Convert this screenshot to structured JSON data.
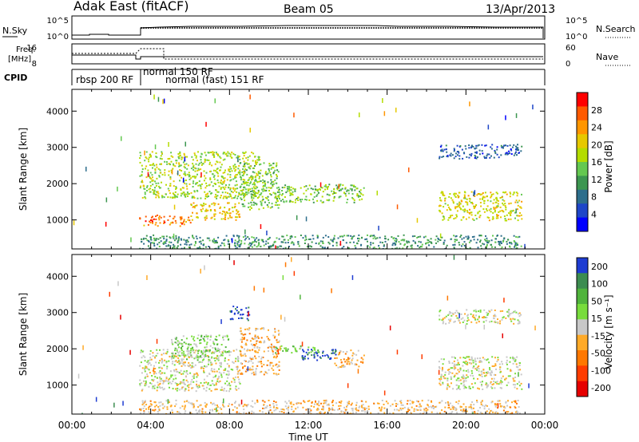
{
  "header": {
    "station": "Adak East (fitACF)",
    "beam": "Beam 05",
    "date": "13/Apr/2013"
  },
  "top_panels": {
    "nsky_label": "N.Sky",
    "nsearch_label": "N.Search",
    "nsky_ticks": [
      "10^5",
      "10^0"
    ],
    "nsearch_ticks": [
      "10^5",
      "10^0"
    ],
    "freq_label_1": "Freq.",
    "freq_label_2": "[MHz]",
    "freq_ticks": [
      "16",
      "8"
    ],
    "nave_label": "Nave",
    "nave_ticks": [
      "60",
      "0"
    ],
    "cpid_label": "CPID",
    "cpid_entries": [
      {
        "text": "rbsp 200 RF",
        "start": 0.0
      },
      {
        "text": "normal 150 RF",
        "start": 3.3
      },
      {
        "text": "normal (fast) 151 RF",
        "start": 3.3
      }
    ]
  },
  "colorbars": {
    "power": {
      "label": "Power [dB]",
      "ticks": [
        "28",
        "24",
        "20",
        "16",
        "12",
        "8",
        "4"
      ],
      "colors": [
        "#ff0000",
        "#ff5a00",
        "#ff9600",
        "#e6c800",
        "#b4dc00",
        "#64c850",
        "#3c9650",
        "#2d6e8c",
        "#1e46c8",
        "#0000ff"
      ]
    },
    "velocity": {
      "label": "Velocity [m s⁻¹]",
      "ticks": [
        "200",
        "100",
        "50",
        "15",
        "-15",
        "-50",
        "-100",
        "-200"
      ],
      "colors": [
        "#1e3cd2",
        "#3c8c50",
        "#50b43c",
        "#78dc3c",
        "#c8c8c8",
        "#ffaa28",
        "#ff7800",
        "#ff3c00",
        "#e60000"
      ]
    }
  },
  "axes": {
    "ylabel": "Slant Range [km]",
    "xlabel": "Time UT",
    "yticks": [
      "1000",
      "2000",
      "3000",
      "4000"
    ],
    "xticks": [
      "00:00",
      "04:00",
      "08:00",
      "12:00",
      "16:00",
      "20:00",
      "00:00"
    ]
  },
  "chart_data": [
    {
      "type": "heatmap",
      "title": "",
      "parameter": "Power",
      "xlabel": "Time UT",
      "ylabel": "Slant Range [km]",
      "xlim_hours": [
        0,
        24
      ],
      "ylim_km": [
        200,
        4600
      ],
      "cbar_label": "Power [dB]",
      "cbar_range": [
        0,
        30
      ],
      "regions": [
        {
          "t0": 3.4,
          "t1": 6.0,
          "r0": 850,
          "r1": 1150,
          "level": 24
        },
        {
          "t0": 6.0,
          "t1": 8.5,
          "r0": 1000,
          "r1": 1500,
          "level": 20
        },
        {
          "t0": 8.5,
          "t1": 10.5,
          "r0": 1300,
          "r1": 2600,
          "level": 14
        },
        {
          "t0": 3.4,
          "t1": 9.5,
          "r0": 1600,
          "r1": 2900,
          "level": 16
        },
        {
          "t0": 10.3,
          "t1": 14.8,
          "r0": 1500,
          "r1": 2000,
          "level": 14
        },
        {
          "t0": 18.6,
          "t1": 22.8,
          "r0": 1000,
          "r1": 1800,
          "level": 18
        },
        {
          "t0": 18.6,
          "t1": 22.8,
          "r0": 2700,
          "r1": 3100,
          "level": 6
        },
        {
          "t0": 3.4,
          "t1": 22.8,
          "r0": 200,
          "r1": 600,
          "level": 10
        }
      ]
    },
    {
      "type": "heatmap",
      "title": "",
      "parameter": "Velocity",
      "xlabel": "Time UT",
      "ylabel": "Slant Range [km]",
      "xlim_hours": [
        0,
        24
      ],
      "ylim_km": [
        200,
        4600
      ],
      "cbar_label": "Velocity [m s⁻¹]",
      "cbar_range": [
        -200,
        200
      ],
      "regions": [
        {
          "t0": 3.4,
          "t1": 8.5,
          "r0": 850,
          "r1": 2000,
          "level": 0
        },
        {
          "t0": 8.5,
          "t1": 10.5,
          "r0": 1300,
          "r1": 2600,
          "level": -40
        },
        {
          "t0": 5.0,
          "t1": 8.0,
          "r0": 1700,
          "r1": 2400,
          "level": 40
        },
        {
          "t0": 8.0,
          "t1": 9.0,
          "r0": 2800,
          "r1": 3200,
          "level": 180
        },
        {
          "t0": 10.3,
          "t1": 12.5,
          "r0": 1900,
          "r1": 2100,
          "level": 60
        },
        {
          "t0": 11.5,
          "t1": 13.5,
          "r0": 1700,
          "r1": 2000,
          "level": 180
        },
        {
          "t0": 13.3,
          "t1": 14.8,
          "r0": 1500,
          "r1": 2000,
          "level": -50
        },
        {
          "t0": 18.6,
          "t1": 22.8,
          "r0": 900,
          "r1": 1800,
          "level": 0
        },
        {
          "t0": 18.6,
          "t1": 22.8,
          "r0": 2700,
          "r1": 3100,
          "level": 5
        },
        {
          "t0": 3.4,
          "t1": 22.8,
          "r0": 200,
          "r1": 600,
          "level": -30
        }
      ]
    }
  ]
}
